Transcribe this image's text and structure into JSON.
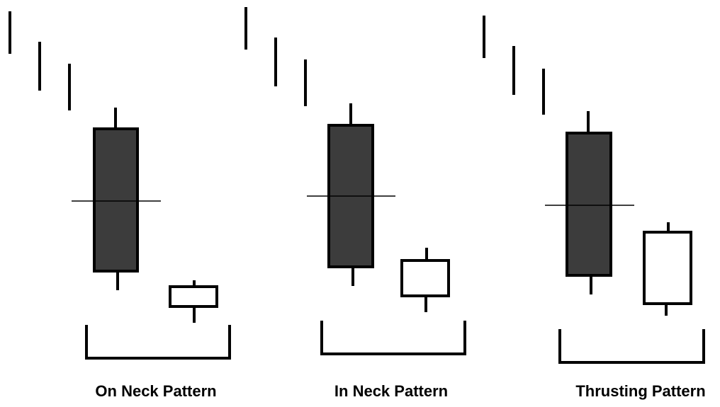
{
  "colors": {
    "background": "#ffffff",
    "stroke": "#000000",
    "bearish_fill": "#3c3c3c",
    "bullish_fill": "#ffffff"
  },
  "patterns": [
    {
      "label": "On Neck Pattern"
    },
    {
      "label": "In Neck Pattern"
    },
    {
      "label": "Thrusting Pattern"
    }
  ]
}
